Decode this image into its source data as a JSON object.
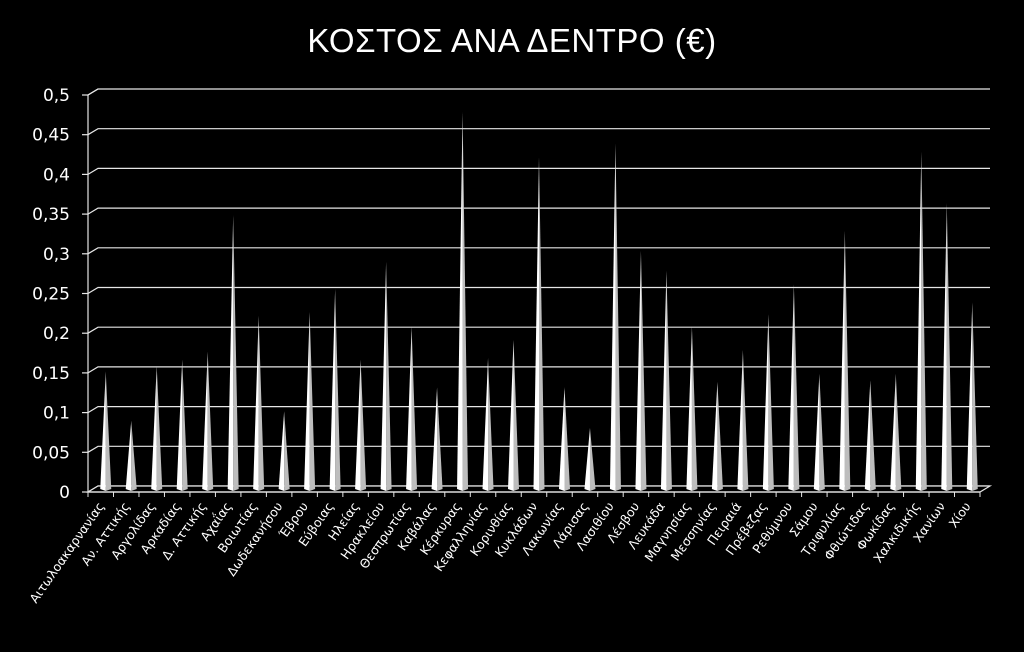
{
  "chart_data": {
    "type": "bar",
    "title": "ΚΟΣΤΟΣ ΑΝΑ ΔΕΝΤΡΟ (€)",
    "xlabel": "",
    "ylabel": "",
    "ylim": [
      0,
      0.5
    ],
    "y_ticks": [
      "0",
      "0,05",
      "0,1",
      "0,15",
      "0,2",
      "0,25",
      "0,3",
      "0,35",
      "0,4",
      "0,45",
      "0,5"
    ],
    "grid": true,
    "legend": "none",
    "bar_color": "#ffffff",
    "background_color": "#000000",
    "categories": [
      "Αιτωλοακαρνανίας",
      "Αν. Αττικής",
      "Αργολίδας",
      "Αρκαδίας",
      "Δ. Αττικής",
      "Αχαΐας",
      "Βοιωτίας",
      "Δωδεκανήσου",
      "Έβρου",
      "Εύβοιας",
      "Ηλείας",
      "Ηρακλείου",
      "Θεσπρωτίας",
      "Καβάλας",
      "Κέρκυρας",
      "Κεφαλληνίας",
      "Κορινθίας",
      "Κυκλάδων",
      "Λακωνίας",
      "Λάρισας",
      "Λασιθίου",
      "Λέσβου",
      "Λευκάδα",
      "Μαγνησίας",
      "Μεσσηνίας",
      "Πειραιά",
      "Πρέβεζας",
      "Ρεθύμνου",
      "Σάμου",
      "Τριφυλίας",
      "Φθιώτιδας",
      "Φωκίδας",
      "Χαλκιδικής",
      "Χανίων",
      "Χίου"
    ],
    "values": [
      0.148,
      0.086,
      0.155,
      0.163,
      0.173,
      0.345,
      0.218,
      0.098,
      0.223,
      0.252,
      0.163,
      0.286,
      0.205,
      0.128,
      0.475,
      0.165,
      0.188,
      0.418,
      0.128,
      0.077,
      0.435,
      0.3,
      0.275,
      0.205,
      0.135,
      0.175,
      0.22,
      0.258,
      0.145,
      0.325,
      0.137,
      0.145,
      0.425,
      0.36,
      0.235
    ]
  }
}
